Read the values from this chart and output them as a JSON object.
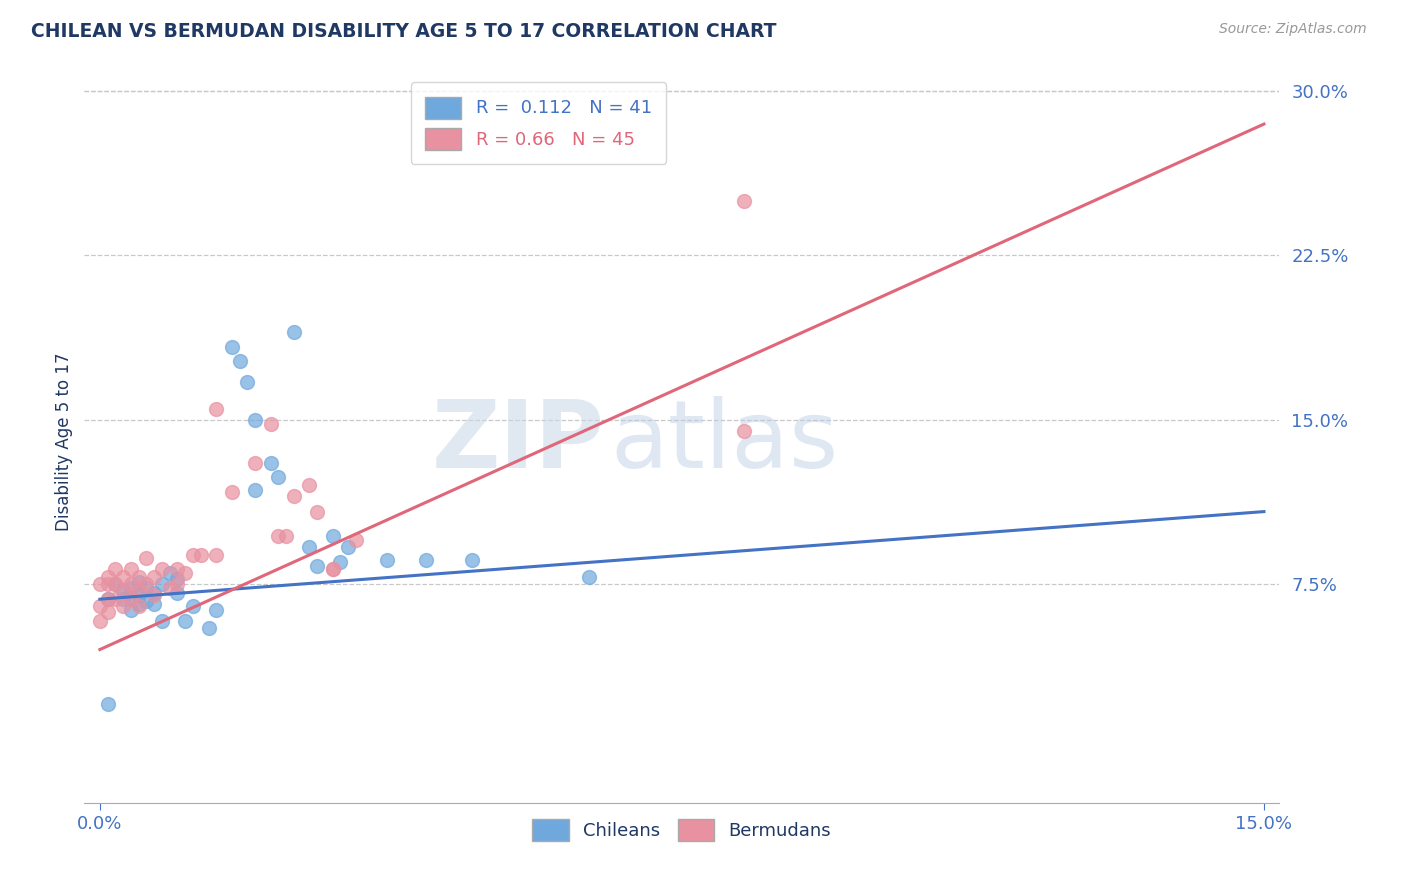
{
  "title": "CHILEAN VS BERMUDAN DISABILITY AGE 5 TO 17 CORRELATION CHART",
  "source": "Source: ZipAtlas.com",
  "ylabel": "Disability Age 5 to 17",
  "xlim": [
    -0.002,
    0.152
  ],
  "ylim": [
    -0.025,
    0.305
  ],
  "xticks": [
    0.0,
    0.15
  ],
  "xticklabels": [
    "0.0%",
    "15.0%"
  ],
  "yticks": [
    0.075,
    0.15,
    0.225,
    0.3
  ],
  "yticklabels": [
    "7.5%",
    "15.0%",
    "22.5%",
    "30.0%"
  ],
  "chilean_color": "#6fa8dc",
  "bermudan_color": "#e891a0",
  "chilean_line_color": "#4472c4",
  "bermudan_line_color": "#e06679",
  "chilean_R": 0.112,
  "chilean_N": 41,
  "bermudan_R": 0.66,
  "bermudan_N": 45,
  "watermark_zip": "ZIP",
  "watermark_atlas": "atlas",
  "title_color": "#1f3864",
  "tick_color": "#4472c4",
  "grid_color": "#c8c8c8",
  "background_color": "#ffffff",
  "legend_bg": "#ffffff",
  "legend_border": "#cccccc",
  "chilean_points": [
    [
      0.001,
      0.068
    ],
    [
      0.002,
      0.075
    ],
    [
      0.003,
      0.072
    ],
    [
      0.003,
      0.068
    ],
    [
      0.004,
      0.073
    ],
    [
      0.004,
      0.068
    ],
    [
      0.004,
      0.063
    ],
    [
      0.005,
      0.076
    ],
    [
      0.005,
      0.07
    ],
    [
      0.005,
      0.066
    ],
    [
      0.006,
      0.073
    ],
    [
      0.006,
      0.067
    ],
    [
      0.007,
      0.071
    ],
    [
      0.007,
      0.066
    ],
    [
      0.008,
      0.075
    ],
    [
      0.008,
      0.058
    ],
    [
      0.009,
      0.08
    ],
    [
      0.01,
      0.077
    ],
    [
      0.01,
      0.071
    ],
    [
      0.011,
      0.058
    ],
    [
      0.012,
      0.065
    ],
    [
      0.014,
      0.055
    ],
    [
      0.015,
      0.063
    ],
    [
      0.017,
      0.183
    ],
    [
      0.018,
      0.177
    ],
    [
      0.019,
      0.167
    ],
    [
      0.02,
      0.15
    ],
    [
      0.02,
      0.118
    ],
    [
      0.022,
      0.13
    ],
    [
      0.023,
      0.124
    ],
    [
      0.025,
      0.19
    ],
    [
      0.027,
      0.092
    ],
    [
      0.028,
      0.083
    ],
    [
      0.03,
      0.097
    ],
    [
      0.031,
      0.085
    ],
    [
      0.032,
      0.092
    ],
    [
      0.037,
      0.086
    ],
    [
      0.042,
      0.086
    ],
    [
      0.048,
      0.086
    ],
    [
      0.063,
      0.078
    ],
    [
      0.001,
      0.02
    ]
  ],
  "bermudan_points": [
    [
      0.001,
      0.075
    ],
    [
      0.001,
      0.068
    ],
    [
      0.002,
      0.082
    ],
    [
      0.002,
      0.075
    ],
    [
      0.002,
      0.068
    ],
    [
      0.003,
      0.078
    ],
    [
      0.003,
      0.072
    ],
    [
      0.003,
      0.065
    ],
    [
      0.004,
      0.082
    ],
    [
      0.004,
      0.075
    ],
    [
      0.004,
      0.068
    ],
    [
      0.005,
      0.078
    ],
    [
      0.005,
      0.072
    ],
    [
      0.005,
      0.065
    ],
    [
      0.006,
      0.087
    ],
    [
      0.006,
      0.075
    ],
    [
      0.007,
      0.078
    ],
    [
      0.007,
      0.07
    ],
    [
      0.008,
      0.082
    ],
    [
      0.009,
      0.073
    ],
    [
      0.01,
      0.082
    ],
    [
      0.01,
      0.075
    ],
    [
      0.011,
      0.08
    ],
    [
      0.012,
      0.088
    ],
    [
      0.013,
      0.088
    ],
    [
      0.015,
      0.088
    ],
    [
      0.015,
      0.155
    ],
    [
      0.017,
      0.117
    ],
    [
      0.02,
      0.13
    ],
    [
      0.022,
      0.148
    ],
    [
      0.023,
      0.097
    ],
    [
      0.024,
      0.097
    ],
    [
      0.025,
      0.115
    ],
    [
      0.027,
      0.12
    ],
    [
      0.028,
      0.108
    ],
    [
      0.03,
      0.082
    ],
    [
      0.03,
      0.082
    ],
    [
      0.033,
      0.095
    ],
    [
      0.001,
      0.078
    ],
    [
      0.001,
      0.062
    ],
    [
      0.0,
      0.075
    ],
    [
      0.0,
      0.065
    ],
    [
      0.083,
      0.25
    ],
    [
      0.083,
      0.145
    ],
    [
      0.0,
      0.058
    ]
  ]
}
